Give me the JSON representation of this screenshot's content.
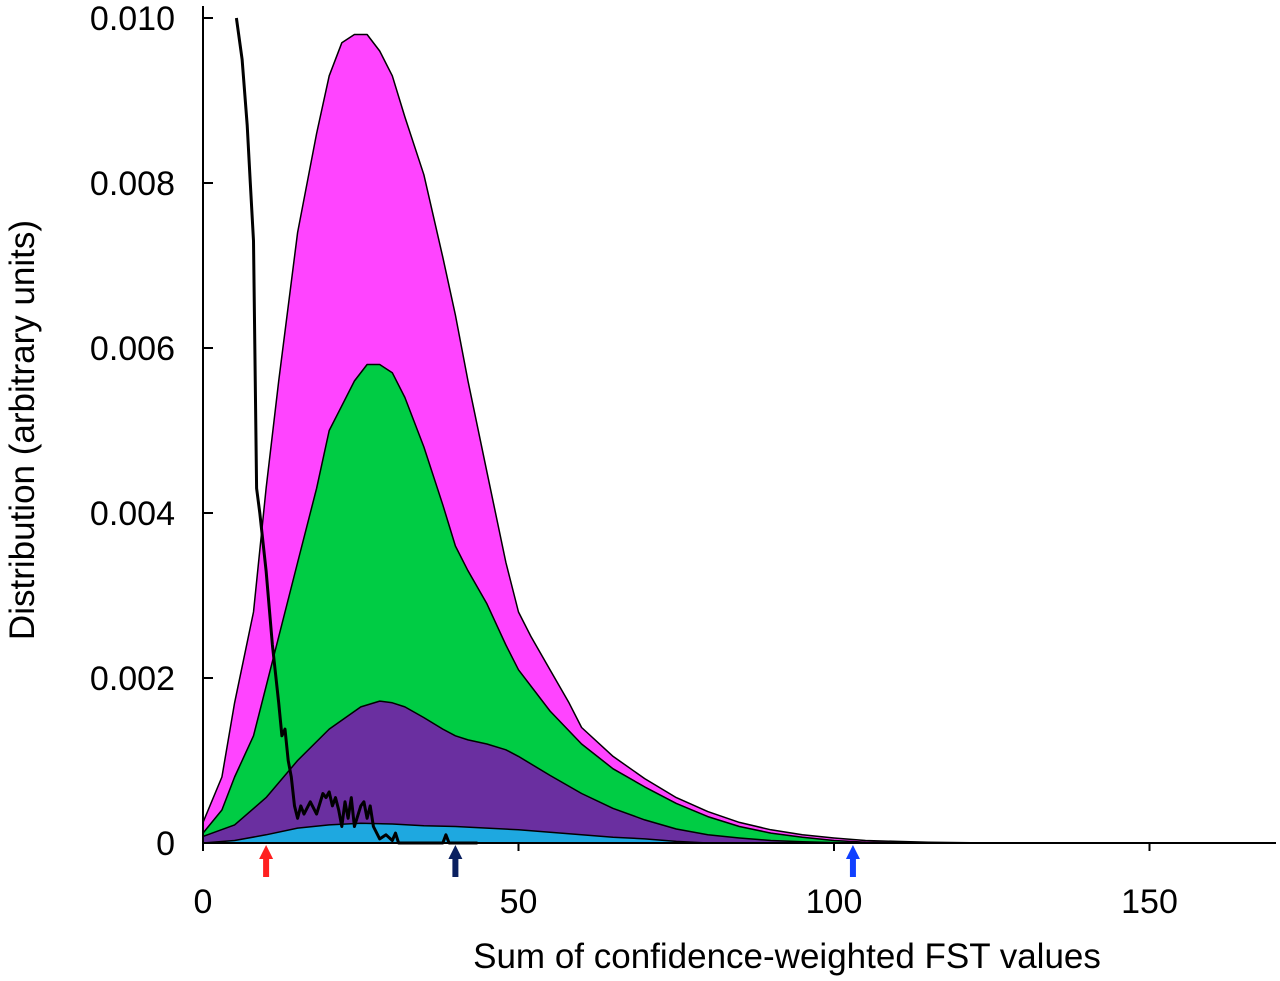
{
  "chart_data": {
    "type": "area",
    "title": "",
    "xlabel": "Sum of confidence-weighted FST values",
    "ylabel": "Distribution (arbitrary units)",
    "xlim": [
      0,
      170
    ],
    "ylim": [
      0,
      0.01
    ],
    "x_ticks": [
      0,
      50,
      100,
      150
    ],
    "x_tick_labels": [
      "0",
      "50",
      "100",
      "150"
    ],
    "y_ticks": [
      0,
      0.002,
      0.004,
      0.006,
      0.008,
      0.01
    ],
    "y_tick_labels": [
      "0",
      "0.002",
      "0.004",
      "0.006",
      "0.008",
      "0.010"
    ],
    "grid": false,
    "legend": "none",
    "series": [
      {
        "color": "#ff44ff",
        "kind": "stacked-area-top",
        "x": [
          0,
          3,
          5,
          8,
          10,
          12,
          15,
          18,
          20,
          22,
          24,
          26,
          28,
          30,
          32,
          35,
          38,
          40,
          42,
          45,
          48,
          50,
          52,
          55,
          58,
          60,
          65,
          70,
          75,
          80,
          85,
          90,
          95,
          100,
          105,
          110,
          115,
          120,
          125
        ],
        "values": [
          0.00025,
          0.0008,
          0.0017,
          0.0028,
          0.0043,
          0.0056,
          0.0074,
          0.0086,
          0.0093,
          0.0097,
          0.0098,
          0.0098,
          0.0096,
          0.0093,
          0.0088,
          0.0081,
          0.0071,
          0.0064,
          0.0056,
          0.0045,
          0.0034,
          0.0028,
          0.0025,
          0.0021,
          0.0017,
          0.0014,
          0.00105,
          0.00078,
          0.00055,
          0.00038,
          0.00025,
          0.00016,
          0.0001,
          6e-05,
          3e-05,
          2e-05,
          1e-05,
          5e-06,
          0.0
        ]
      },
      {
        "color": "#00cc44",
        "kind": "stacked-area",
        "x": [
          0,
          3,
          5,
          8,
          10,
          12,
          15,
          18,
          20,
          22,
          24,
          26,
          28,
          30,
          32,
          35,
          38,
          40,
          42,
          45,
          48,
          50,
          55,
          60,
          65,
          70,
          75,
          80,
          85,
          90,
          95,
          100,
          105,
          110,
          115
        ],
        "values": [
          0.00012,
          0.0004,
          0.0008,
          0.0013,
          0.0019,
          0.0025,
          0.0034,
          0.0043,
          0.005,
          0.0053,
          0.0056,
          0.0058,
          0.0058,
          0.0057,
          0.0054,
          0.0048,
          0.0041,
          0.0036,
          0.0033,
          0.0029,
          0.0024,
          0.0021,
          0.0016,
          0.0012,
          0.0009,
          0.00068,
          0.00048,
          0.00032,
          0.0002,
          0.00012,
          7e-05,
          3e-05,
          1e-05,
          5e-06,
          0.0
        ]
      },
      {
        "color": "#6a2fa0",
        "kind": "stacked-area",
        "x": [
          0,
          5,
          10,
          15,
          20,
          25,
          28,
          30,
          32,
          35,
          38,
          40,
          42,
          45,
          48,
          50,
          55,
          60,
          65,
          70,
          75,
          80,
          85,
          90,
          95,
          100,
          105,
          110
        ],
        "values": [
          8e-05,
          0.00022,
          0.00055,
          0.001,
          0.00138,
          0.00165,
          0.00172,
          0.0017,
          0.00165,
          0.00152,
          0.00138,
          0.0013,
          0.00125,
          0.0012,
          0.00113,
          0.00105,
          0.00082,
          0.0006,
          0.00042,
          0.00028,
          0.00017,
          0.0001,
          6e-05,
          3e-05,
          1.5e-05,
          5e-06,
          0.0,
          0.0
        ]
      },
      {
        "color": "#1ea8e0",
        "kind": "stacked-area",
        "x": [
          0,
          5,
          10,
          15,
          20,
          25,
          30,
          35,
          40,
          45,
          50,
          55,
          60,
          65,
          70,
          75,
          80
        ],
        "values": [
          0.0,
          3e-05,
          0.0001,
          0.00018,
          0.00022,
          0.00024,
          0.00023,
          0.00021,
          0.0002,
          0.00018,
          0.00016,
          0.00013,
          0.0001,
          7e-05,
          5e-05,
          2e-05,
          0.0
        ]
      },
      {
        "color": "#000000",
        "kind": "line",
        "x": [
          5.3,
          6.2,
          7.0,
          7.5,
          8.0,
          8.5,
          9.0,
          10.0,
          11.0,
          12.0,
          12.5,
          13.0,
          13.5,
          14.0,
          14.5,
          15.0,
          15.5,
          16.0,
          17.0,
          18.0,
          19.0,
          19.5,
          20.0,
          20.5,
          21.0,
          21.5,
          22.0,
          22.5,
          23.0,
          23.5,
          24.0,
          25.0,
          25.5,
          26.0,
          26.5,
          27.0,
          28.0,
          29.0,
          30.0,
          30.5,
          31.0,
          32.0,
          35.0,
          37.0,
          38.0,
          38.5,
          39.0,
          40.0,
          43.5
        ],
        "values": [
          0.01,
          0.0095,
          0.0087,
          0.008,
          0.0073,
          0.0043,
          0.004,
          0.0033,
          0.0024,
          0.0017,
          0.0013,
          0.00138,
          0.001,
          0.0008,
          0.00045,
          0.0003,
          0.00045,
          0.00035,
          0.0005,
          0.00035,
          0.0006,
          0.00055,
          0.00062,
          0.00045,
          0.00055,
          0.0004,
          0.0002,
          0.0005,
          0.0003,
          0.00055,
          0.0002,
          0.00045,
          0.0005,
          0.0003,
          0.00045,
          0.0002,
          5e-05,
          0.0001,
          3e-05,
          0.00012,
          0.0,
          0.0,
          0.0,
          0.0,
          0.0,
          0.0001,
          0.0,
          0.0,
          0.0
        ]
      }
    ],
    "markers": [
      {
        "x": 10,
        "color": "#ff2020",
        "shape": "arrow-up"
      },
      {
        "x": 40,
        "color": "#0a2060",
        "shape": "arrow-up"
      },
      {
        "x": 103,
        "color": "#1040ff",
        "shape": "arrow-up"
      }
    ]
  }
}
